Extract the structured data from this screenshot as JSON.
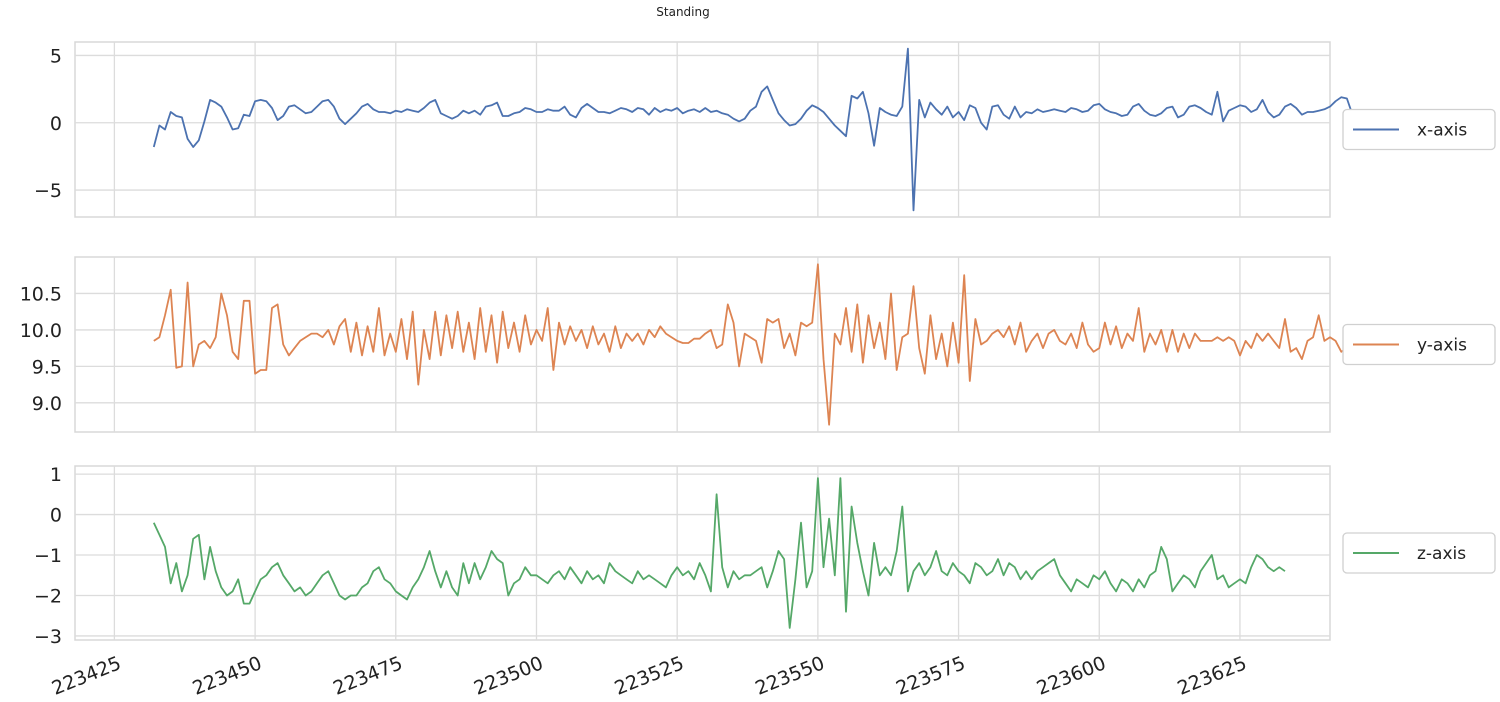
{
  "chart_data": {
    "type": "line",
    "title": "Standing",
    "x_ticks": [
      223425,
      223450,
      223475,
      223500,
      223525,
      223550,
      223575,
      223600,
      223625
    ],
    "xlim": [
      223418,
      223641
    ],
    "x_start": 223432,
    "x_step": 1,
    "grid": true,
    "legend_placement": "right",
    "panels": [
      {
        "name": "x-axis",
        "color": "#4c72b0",
        "ylim": [
          -7,
          6
        ],
        "y_ticks": [
          -5,
          0,
          5
        ],
        "y_tick_labels": [
          "−5",
          "0",
          "5"
        ],
        "values": [
          -1.8,
          -0.2,
          -0.5,
          0.8,
          0.5,
          0.4,
          -1.2,
          -1.8,
          -1.3,
          0.1,
          1.7,
          1.5,
          1.2,
          0.4,
          -0.5,
          -0.4,
          0.6,
          0.5,
          1.6,
          1.7,
          1.6,
          1.1,
          0.2,
          0.5,
          1.2,
          1.3,
          1,
          0.7,
          0.8,
          1.2,
          1.6,
          1.7,
          1.2,
          0.3,
          -0.1,
          0.3,
          0.7,
          1.2,
          1.4,
          1,
          0.8,
          0.8,
          0.7,
          0.9,
          0.8,
          1,
          0.9,
          0.8,
          1.1,
          1.5,
          1.7,
          0.7,
          0.5,
          0.3,
          0.5,
          0.9,
          0.7,
          0.9,
          0.6,
          1.2,
          1.3,
          1.5,
          0.5,
          0.5,
          0.7,
          0.8,
          1.1,
          1,
          0.8,
          0.8,
          1,
          0.9,
          0.9,
          1.2,
          0.6,
          0.4,
          1.1,
          1.4,
          1.1,
          0.8,
          0.8,
          0.7,
          0.9,
          1.1,
          1,
          0.8,
          1.1,
          1,
          0.6,
          1.1,
          0.8,
          1,
          0.9,
          1.1,
          0.7,
          0.9,
          1,
          0.8,
          1.1,
          0.8,
          0.9,
          0.7,
          0.6,
          0.3,
          0.1,
          0.3,
          0.9,
          1.2,
          2.3,
          2.7,
          1.7,
          0.7,
          0.2,
          -0.2,
          -0.1,
          0.3,
          0.9,
          1.3,
          1.1,
          0.8,
          0.3,
          -0.2,
          -0.6,
          -1,
          2,
          1.8,
          2.3,
          0.7,
          -1.7,
          1.1,
          0.8,
          0.6,
          0.5,
          1.2,
          5.5,
          -6.5,
          1.7,
          0.4,
          1.5,
          1,
          0.6,
          1.2,
          0.4,
          0.8,
          0.2,
          1.3,
          1.1,
          0,
          -0.5,
          1.2,
          1.3,
          0.6,
          0.3,
          1.2,
          0.4,
          0.8,
          0.7,
          1,
          0.8,
          0.9,
          1,
          0.9,
          0.8,
          1.1,
          1,
          0.8,
          0.9,
          1.3,
          1.4,
          1,
          0.8,
          0.7,
          0.5,
          0.6,
          1.2,
          1.4,
          0.9,
          0.6,
          0.5,
          0.7,
          1.1,
          1.2,
          0.4,
          0.6,
          1.2,
          1.3,
          1.1,
          0.8,
          0.6,
          2.3,
          0.1,
          0.9,
          1.1,
          1.3,
          1.2,
          0.8,
          1,
          1.7,
          0.8,
          0.4,
          0.6,
          1.2,
          1.4,
          1.1,
          0.6,
          0.8,
          0.8,
          0.9,
          1,
          1.2,
          1.6,
          1.9,
          1.8,
          0.6
        ]
      },
      {
        "name": "y-axis",
        "color": "#dd8452",
        "ylim": [
          8.6,
          11.0
        ],
        "y_ticks": [
          9.0,
          9.5,
          10.0,
          10.5
        ],
        "y_tick_labels": [
          "9.0",
          "9.5",
          "10.0",
          "10.5"
        ],
        "values": [
          9.85,
          9.9,
          10.2,
          10.55,
          9.48,
          9.5,
          10.65,
          9.5,
          9.8,
          9.85,
          9.75,
          9.9,
          10.5,
          10.2,
          9.7,
          9.6,
          10.4,
          10.4,
          9.4,
          9.45,
          9.45,
          10.3,
          10.35,
          9.8,
          9.65,
          9.75,
          9.85,
          9.9,
          9.95,
          9.95,
          9.9,
          10.0,
          9.8,
          10.05,
          10.15,
          9.7,
          10.1,
          9.65,
          10.05,
          9.7,
          10.3,
          9.65,
          9.95,
          9.7,
          10.15,
          9.6,
          10.25,
          9.25,
          10.0,
          9.6,
          10.25,
          9.65,
          10.2,
          9.75,
          10.25,
          9.7,
          10.1,
          9.6,
          10.3,
          9.7,
          10.2,
          9.55,
          10.25,
          9.75,
          10.1,
          9.7,
          10.2,
          9.8,
          10.0,
          9.85,
          10.3,
          9.45,
          10.1,
          9.8,
          10.05,
          9.85,
          10.0,
          9.75,
          10.05,
          9.8,
          9.95,
          9.7,
          10.05,
          9.75,
          9.95,
          9.85,
          9.95,
          9.8,
          10.0,
          9.9,
          10.05,
          9.95,
          9.9,
          9.85,
          9.82,
          9.82,
          9.88,
          9.88,
          9.95,
          10.0,
          9.75,
          9.8,
          10.35,
          10.1,
          9.5,
          9.95,
          9.9,
          9.85,
          9.55,
          10.15,
          10.1,
          10.15,
          9.75,
          9.95,
          9.65,
          10.1,
          10.05,
          10.1,
          10.9,
          9.6,
          8.7,
          9.95,
          9.8,
          10.3,
          9.7,
          10.35,
          9.55,
          10.2,
          9.75,
          10.1,
          9.6,
          10.5,
          9.45,
          9.9,
          9.95,
          10.6,
          9.75,
          9.4,
          10.2,
          9.6,
          9.95,
          9.5,
          10.1,
          9.55,
          10.75,
          9.3,
          10.15,
          9.8,
          9.85,
          9.95,
          10.0,
          9.9,
          10.05,
          9.8,
          10.1,
          9.7,
          9.85,
          9.95,
          9.75,
          9.95,
          10.0,
          9.85,
          9.8,
          9.95,
          9.75,
          10.1,
          9.8,
          9.7,
          9.75,
          10.1,
          9.8,
          10.05,
          9.75,
          9.95,
          9.85,
          10.3,
          9.7,
          9.95,
          9.8,
          10.0,
          9.7,
          10.0,
          9.7,
          9.95,
          9.75,
          9.95,
          9.85,
          9.85,
          9.85,
          9.9,
          9.85,
          9.9,
          9.85,
          9.65,
          9.85,
          9.75,
          9.95,
          9.85,
          9.95,
          9.85,
          9.75,
          10.15,
          9.7,
          9.75,
          9.6,
          9.85,
          9.9,
          10.2,
          9.85,
          9.9,
          9.85,
          9.7,
          9.75,
          9.75,
          9.8,
          9.95
        ]
      },
      {
        "name": "z-axis",
        "color": "#55a868",
        "ylim": [
          -3.1,
          1.2
        ],
        "y_ticks": [
          -3,
          -2,
          -1,
          0,
          1
        ],
        "y_tick_labels": [
          "−3",
          "−2",
          "−1",
          "0",
          "1"
        ],
        "values": [
          -0.2,
          -0.5,
          -0.8,
          -1.7,
          -1.2,
          -1.9,
          -1.5,
          -0.6,
          -0.5,
          -1.6,
          -0.8,
          -1.4,
          -1.8,
          -2.0,
          -1.9,
          -1.6,
          -2.2,
          -2.2,
          -1.9,
          -1.6,
          -1.5,
          -1.3,
          -1.2,
          -1.5,
          -1.7,
          -1.9,
          -1.8,
          -2.0,
          -1.9,
          -1.7,
          -1.5,
          -1.4,
          -1.7,
          -2.0,
          -2.1,
          -2.0,
          -2.0,
          -1.8,
          -1.7,
          -1.4,
          -1.3,
          -1.6,
          -1.7,
          -1.9,
          -2.0,
          -2.1,
          -1.8,
          -1.6,
          -1.3,
          -0.9,
          -1.4,
          -1.8,
          -1.4,
          -1.8,
          -2.0,
          -1.2,
          -1.7,
          -1.2,
          -1.6,
          -1.3,
          -0.9,
          -1.1,
          -1.2,
          -2.0,
          -1.7,
          -1.6,
          -1.3,
          -1.5,
          -1.5,
          -1.6,
          -1.7,
          -1.5,
          -1.4,
          -1.6,
          -1.3,
          -1.5,
          -1.7,
          -1.4,
          -1.6,
          -1.5,
          -1.7,
          -1.2,
          -1.4,
          -1.5,
          -1.6,
          -1.7,
          -1.4,
          -1.6,
          -1.5,
          -1.6,
          -1.7,
          -1.8,
          -1.5,
          -1.3,
          -1.5,
          -1.4,
          -1.6,
          -1.2,
          -1.5,
          -1.9,
          0.5,
          -1.3,
          -1.8,
          -1.4,
          -1.6,
          -1.5,
          -1.5,
          -1.4,
          -1.3,
          -1.8,
          -1.4,
          -0.9,
          -1.1,
          -2.8,
          -1.6,
          -0.2,
          -1.8,
          -1.4,
          0.9,
          -1.3,
          -0.1,
          -1.5,
          0.9,
          -2.4,
          0.2,
          -0.7,
          -1.4,
          -2.0,
          -0.7,
          -1.5,
          -1.3,
          -1.5,
          -0.9,
          0.2,
          -1.9,
          -1.4,
          -1.2,
          -1.5,
          -1.3,
          -0.9,
          -1.4,
          -1.5,
          -1.2,
          -1.4,
          -1.5,
          -1.7,
          -1.2,
          -1.3,
          -1.5,
          -1.4,
          -1.1,
          -1.5,
          -1.2,
          -1.3,
          -1.6,
          -1.4,
          -1.6,
          -1.4,
          -1.3,
          -1.2,
          -1.1,
          -1.5,
          -1.7,
          -1.9,
          -1.6,
          -1.7,
          -1.8,
          -1.5,
          -1.6,
          -1.4,
          -1.7,
          -1.9,
          -1.6,
          -1.7,
          -1.9,
          -1.6,
          -1.8,
          -1.5,
          -1.4,
          -0.8,
          -1.1,
          -1.9,
          -1.7,
          -1.5,
          -1.6,
          -1.8,
          -1.4,
          -1.2,
          -1.0,
          -1.6,
          -1.5,
          -1.8,
          -1.7,
          -1.6,
          -1.7,
          -1.3,
          -1.0,
          -1.1,
          -1.3,
          -1.4,
          -1.3,
          -1.4
        ]
      }
    ]
  }
}
